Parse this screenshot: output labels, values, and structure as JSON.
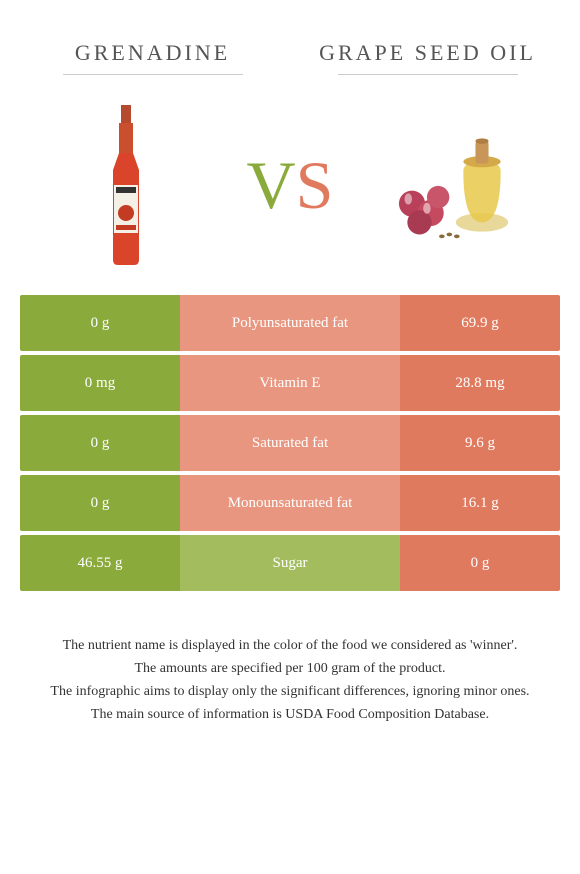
{
  "header": {
    "left_title": "Grenadine",
    "right_title": "Grape seed oil"
  },
  "vs": {
    "v": "V",
    "s": "S"
  },
  "colors": {
    "green": "#8aaa3b",
    "green_light": "#a3bd5e",
    "orange": "#e07a5f",
    "orange_light": "#e89680"
  },
  "rows": [
    {
      "left": "0 g",
      "label": "Polyunsaturated fat",
      "right": "69.9 g",
      "winner": "right"
    },
    {
      "left": "0 mg",
      "label": "Vitamin E",
      "right": "28.8 mg",
      "winner": "right"
    },
    {
      "left": "0 g",
      "label": "Saturated fat",
      "right": "9.6 g",
      "winner": "right"
    },
    {
      "left": "0 g",
      "label": "Monounsaturated fat",
      "right": "16.1 g",
      "winner": "right"
    },
    {
      "left": "46.55 g",
      "label": "Sugar",
      "right": "0 g",
      "winner": "left"
    }
  ],
  "footer": {
    "line1": "The nutrient name is displayed in the color of the food we considered as 'winner'.",
    "line2": "The amounts are specified per 100 gram of the product.",
    "line3": "The infographic aims to display only the significant differences, ignoring minor ones.",
    "line4": "The main source of information is USDA Food Composition Database."
  }
}
